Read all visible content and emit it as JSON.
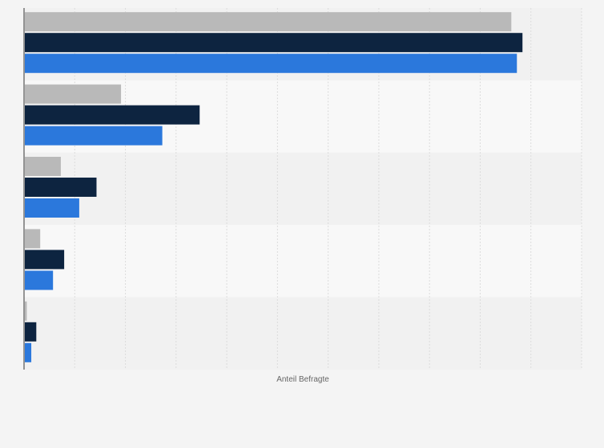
{
  "chart_data": {
    "type": "bar",
    "orientation": "horizontal",
    "title": "",
    "xlabel": "Anteil Befragte",
    "ylabel": "",
    "xlim": [
      0,
      1
    ],
    "grid": true,
    "legend": "none",
    "categories": [
      "",
      "",
      "",
      "",
      ""
    ],
    "series": [
      {
        "color": "#b9b9b9",
        "values": [
          0.874,
          0.174,
          0.066,
          0.029,
          0.005
        ]
      },
      {
        "color": "#0d2440",
        "values": [
          0.894,
          0.315,
          0.13,
          0.072,
          0.022
        ]
      },
      {
        "color": "#2b78dc",
        "values": [
          0.884,
          0.248,
          0.099,
          0.052,
          0.013
        ]
      }
    ]
  }
}
